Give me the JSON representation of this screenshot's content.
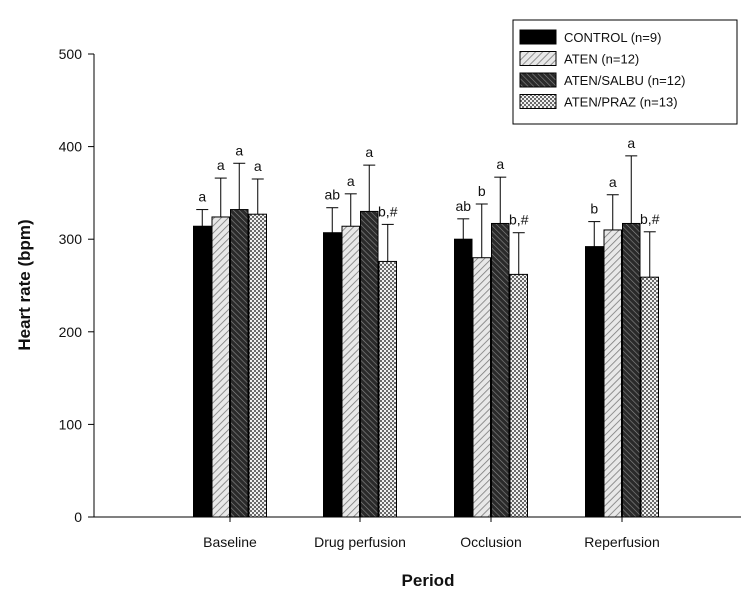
{
  "chart_data": {
    "type": "bar",
    "title": "",
    "xlabel": "Period",
    "ylabel": "Heart rate (bpm)",
    "ylim": [
      0,
      500
    ],
    "yticks": [
      0,
      100,
      200,
      300,
      400,
      500
    ],
    "categories": [
      "Baseline",
      "Drug perfusion",
      "Occlusion",
      "Reperfusion"
    ],
    "error_bars": "upper",
    "legend_position": "top-right",
    "series": [
      {
        "name": "CONTROL (n=9)",
        "pattern": "solid",
        "color": "#000000",
        "values": [
          314,
          307,
          300,
          292
        ],
        "errors": [
          18,
          27,
          22,
          27
        ],
        "annotations": [
          "a",
          "ab",
          "ab",
          "b"
        ]
      },
      {
        "name": "ATEN (n=12)",
        "pattern": "light-diagonal",
        "color": "#bdbdbd",
        "values": [
          324,
          314,
          280,
          310
        ],
        "errors": [
          42,
          35,
          58,
          38
        ],
        "annotations": [
          "a",
          "a",
          "b",
          "a"
        ]
      },
      {
        "name": "ATEN/SALBU (n=12)",
        "pattern": "dark-diagonal",
        "color": "#555555",
        "values": [
          332,
          330,
          317,
          317
        ],
        "errors": [
          50,
          50,
          50,
          73
        ],
        "annotations": [
          "a",
          "a",
          "a",
          "a"
        ]
      },
      {
        "name": "ATEN/PRAZ (n=13)",
        "pattern": "crosshatch",
        "color": "#9a9a9a",
        "values": [
          327,
          276,
          262,
          259
        ],
        "errors": [
          38,
          40,
          45,
          49
        ],
        "annotations": [
          "a",
          "b,#",
          "b,#",
          "b,#"
        ]
      }
    ]
  }
}
